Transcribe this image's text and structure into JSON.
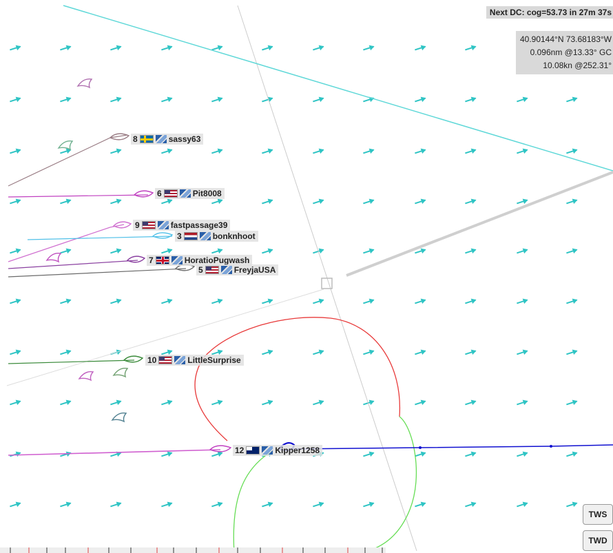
{
  "next_dc": "Next DC: cog=53.73 in 27m 37s",
  "position": {
    "coords": "40.90144°N 73.68183°W",
    "distance": "0.096nm @13.33° GC",
    "speed": "10.08kn @252.31°"
  },
  "buttons": {
    "tws": "TWS",
    "twd": "TWD"
  },
  "boats": [
    {
      "rank": "8",
      "name": "sassy63",
      "flag": "se"
    },
    {
      "rank": "6",
      "name": "Pit8008",
      "flag": "us"
    },
    {
      "rank": "9",
      "name": "fastpassage39",
      "flag": "us"
    },
    {
      "rank": "3",
      "name": "bonknhoot",
      "flag": "nl"
    },
    {
      "rank": "7",
      "name": "HoratioPugwash",
      "flag": "uk"
    },
    {
      "rank": "5",
      "name": "FreyjaUSA",
      "flag": "us"
    },
    {
      "rank": "10",
      "name": "LittleSurprise",
      "flag": "us"
    },
    {
      "rank": "12",
      "name": "Kipper1258",
      "flag": "au"
    }
  ],
  "colors": {
    "wind_arrow": "#2ec4c4",
    "laylines": "#5fd8d8",
    "own_track": "#1010d0",
    "polar_upwind": "#e83a3a",
    "polar_downwind": "#66dd55"
  }
}
